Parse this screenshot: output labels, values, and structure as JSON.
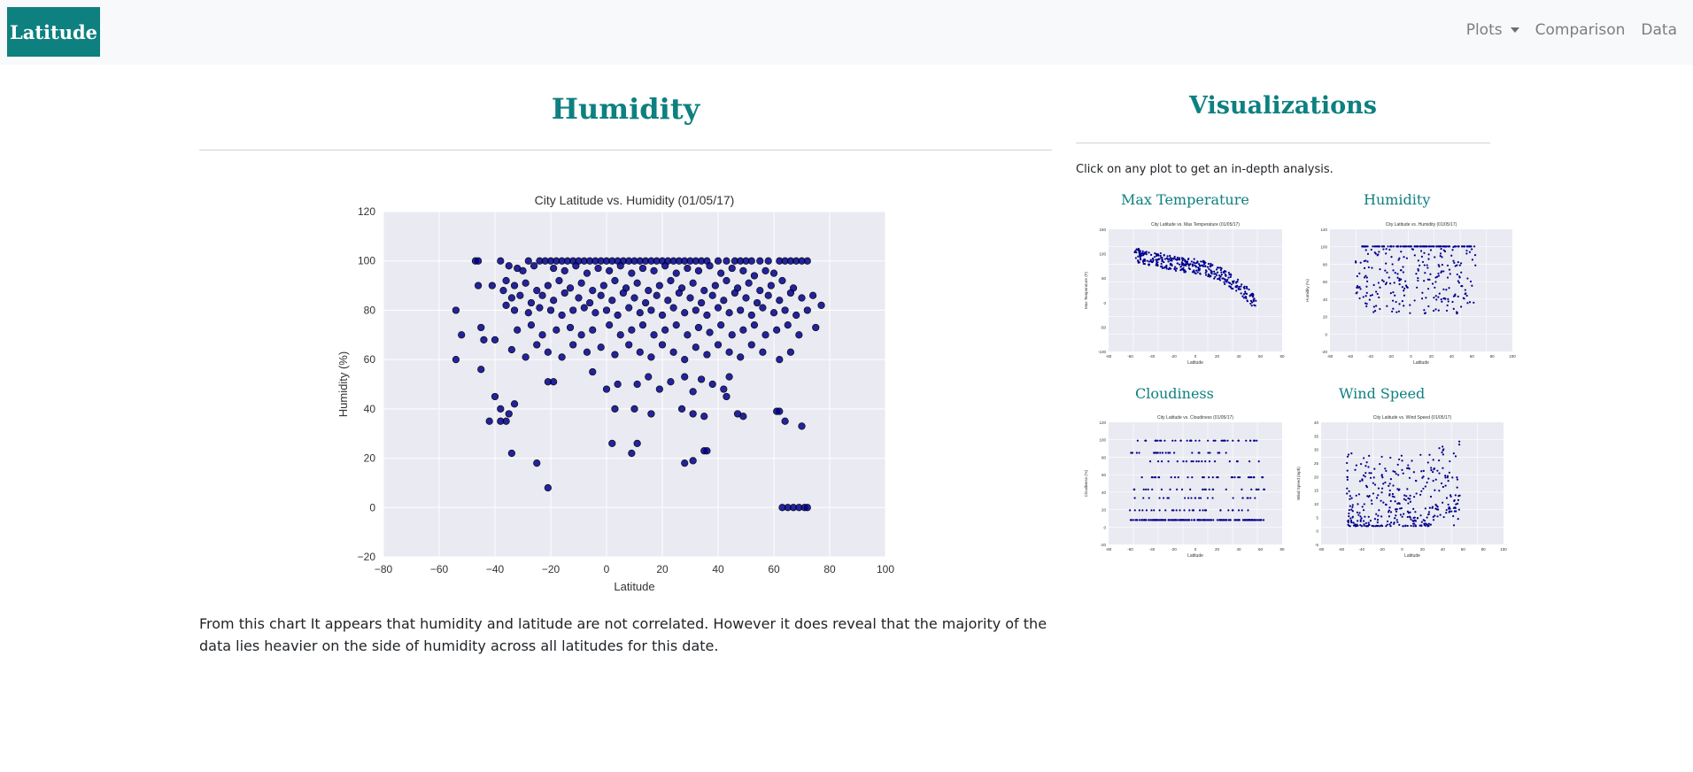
{
  "navbar": {
    "brand": "Latitude",
    "links": [
      {
        "label": "Plots",
        "has_caret": true
      },
      {
        "label": "Comparison"
      },
      {
        "label": "Data"
      }
    ]
  },
  "main": {
    "title": "Humidity",
    "description": "From this chart It appears that humidity and latitude are not correlated. However it does reveal that the majority of the data lies heavier on the side of humidity across all latitudes for this date."
  },
  "sidebar": {
    "title": "Visualizations",
    "intro": "Click on any plot to get an in-depth analysis.",
    "thumbnails": [
      {
        "label": "Max Temperature",
        "plot_title": "City Latitude vs. Max Temperature (01/05/17)",
        "xlabel": "Latitude",
        "ylabel": "Max Temperature (F)",
        "yticks": [
          "150",
          "100",
          "50",
          "0",
          "-50",
          "-100"
        ],
        "xticks": [
          "-80",
          "-60",
          "-40",
          "-20",
          "0",
          "20",
          "40",
          "60",
          "80"
        ]
      },
      {
        "label": "Humidity",
        "plot_title": "City Latitude vs. Humidity (01/05/17)",
        "xlabel": "Latitude",
        "ylabel": "Humidity (%)",
        "yticks": [
          "120",
          "100",
          "80",
          "60",
          "40",
          "20",
          "0",
          "-20"
        ],
        "xticks": [
          "-80",
          "-60",
          "-40",
          "-20",
          "0",
          "20",
          "40",
          "60",
          "80",
          "100"
        ]
      },
      {
        "label": "Cloudiness",
        "plot_title": "City Latitude vs. Cloudiness (01/05/17)",
        "xlabel": "Latitude",
        "ylabel": "Cloudiness (%)",
        "yticks": [
          "120",
          "100",
          "80",
          "60",
          "40",
          "20",
          "0",
          "-20"
        ],
        "xticks": [
          "-80",
          "-60",
          "-40",
          "-20",
          "0",
          "20",
          "40",
          "60",
          "80"
        ]
      },
      {
        "label": "Wind Speed",
        "plot_title": "City Latitude vs. Wind Speed (01/05/17)",
        "xlabel": "Latitude",
        "ylabel": "Wind Speed (mph)",
        "yticks": [
          "40",
          "35",
          "30",
          "25",
          "20",
          "15",
          "10",
          "5",
          "0",
          "-5"
        ],
        "xticks": [
          "-80",
          "-60",
          "-40",
          "-20",
          "0",
          "20",
          "40",
          "60",
          "80",
          "100"
        ]
      }
    ]
  },
  "colors": {
    "accent": "#0e8080",
    "navbar_bg": "#f8f9fa",
    "plot_bg": "#eaeaf2",
    "marker": "#00008b"
  },
  "chart_data": {
    "type": "scatter",
    "title": "City Latitude vs. Humidity (01/05/17)",
    "xlabel": "Latitude",
    "ylabel": "Humidity (%)",
    "xlim": [
      -80,
      100
    ],
    "ylim": [
      -20,
      120
    ],
    "xticks": [
      -80,
      -60,
      -40,
      -20,
      0,
      20,
      40,
      60,
      80,
      100
    ],
    "yticks": [
      -20,
      0,
      20,
      40,
      60,
      80,
      100,
      120
    ],
    "grid": true,
    "series": [
      {
        "points": [
          [
            -47,
            100
          ],
          [
            -46,
            100
          ],
          [
            -38,
            100
          ],
          [
            -35,
            98
          ],
          [
            -32,
            97
          ],
          [
            -28,
            100
          ],
          [
            -24,
            100
          ],
          [
            -22,
            100
          ],
          [
            -20,
            100
          ],
          [
            -18,
            100
          ],
          [
            -16,
            100
          ],
          [
            -14,
            100
          ],
          [
            -12,
            100
          ],
          [
            -10,
            100
          ],
          [
            -8,
            100
          ],
          [
            -6,
            100
          ],
          [
            -4,
            100
          ],
          [
            -2,
            100
          ],
          [
            0,
            100
          ],
          [
            2,
            100
          ],
          [
            4,
            100
          ],
          [
            6,
            100
          ],
          [
            8,
            100
          ],
          [
            10,
            100
          ],
          [
            12,
            100
          ],
          [
            14,
            100
          ],
          [
            16,
            100
          ],
          [
            18,
            100
          ],
          [
            20,
            100
          ],
          [
            22,
            100
          ],
          [
            24,
            100
          ],
          [
            26,
            100
          ],
          [
            28,
            100
          ],
          [
            30,
            100
          ],
          [
            32,
            100
          ],
          [
            34,
            100
          ],
          [
            36,
            100
          ],
          [
            40,
            100
          ],
          [
            43,
            100
          ],
          [
            46,
            100
          ],
          [
            48,
            100
          ],
          [
            50,
            100
          ],
          [
            52,
            100
          ],
          [
            55,
            100
          ],
          [
            58,
            100
          ],
          [
            62,
            100
          ],
          [
            64,
            100
          ],
          [
            66,
            100
          ],
          [
            68,
            100
          ],
          [
            70,
            100
          ],
          [
            72,
            100
          ],
          [
            -30,
            96
          ],
          [
            -26,
            98
          ],
          [
            -19,
            97
          ],
          [
            -15,
            96
          ],
          [
            -11,
            98
          ],
          [
            -7,
            95
          ],
          [
            -3,
            97
          ],
          [
            1,
            96
          ],
          [
            5,
            98
          ],
          [
            9,
            95
          ],
          [
            13,
            97
          ],
          [
            17,
            96
          ],
          [
            21,
            98
          ],
          [
            25,
            95
          ],
          [
            29,
            97
          ],
          [
            33,
            96
          ],
          [
            37,
            98
          ],
          [
            41,
            95
          ],
          [
            45,
            97
          ],
          [
            49,
            96
          ],
          [
            53,
            94
          ],
          [
            57,
            96
          ],
          [
            60,
            95
          ],
          [
            -46,
            90
          ],
          [
            -41,
            90
          ],
          [
            -36,
            92
          ],
          [
            -33,
            90
          ],
          [
            -29,
            91
          ],
          [
            -25,
            88
          ],
          [
            -21,
            90
          ],
          [
            -17,
            92
          ],
          [
            -13,
            89
          ],
          [
            -9,
            91
          ],
          [
            -5,
            88
          ],
          [
            -1,
            90
          ],
          [
            3,
            92
          ],
          [
            7,
            89
          ],
          [
            11,
            91
          ],
          [
            15,
            88
          ],
          [
            19,
            90
          ],
          [
            23,
            92
          ],
          [
            27,
            89
          ],
          [
            31,
            91
          ],
          [
            35,
            88
          ],
          [
            39,
            90
          ],
          [
            43,
            92
          ],
          [
            47,
            89
          ],
          [
            51,
            91
          ],
          [
            55,
            88
          ],
          [
            59,
            90
          ],
          [
            63,
            92
          ],
          [
            67,
            89
          ],
          [
            -37,
            88
          ],
          [
            -34,
            85
          ],
          [
            -31,
            86
          ],
          [
            -27,
            83
          ],
          [
            -23,
            86
          ],
          [
            -19,
            84
          ],
          [
            -15,
            87
          ],
          [
            -10,
            85
          ],
          [
            -6,
            83
          ],
          [
            -2,
            86
          ],
          [
            2,
            84
          ],
          [
            6,
            87
          ],
          [
            10,
            85
          ],
          [
            14,
            83
          ],
          [
            18,
            86
          ],
          [
            22,
            84
          ],
          [
            26,
            87
          ],
          [
            30,
            85
          ],
          [
            34,
            83
          ],
          [
            38,
            86
          ],
          [
            42,
            84
          ],
          [
            46,
            87
          ],
          [
            50,
            85
          ],
          [
            54,
            83
          ],
          [
            58,
            86
          ],
          [
            62,
            84
          ],
          [
            66,
            87
          ],
          [
            70,
            85
          ],
          [
            74,
            86
          ],
          [
            77,
            82
          ],
          [
            -54,
            80
          ],
          [
            -36,
            82
          ],
          [
            -33,
            80
          ],
          [
            -28,
            79
          ],
          [
            -24,
            81
          ],
          [
            -20,
            80
          ],
          [
            -16,
            78
          ],
          [
            -12,
            80
          ],
          [
            -8,
            81
          ],
          [
            -4,
            79
          ],
          [
            0,
            80
          ],
          [
            4,
            78
          ],
          [
            8,
            81
          ],
          [
            12,
            79
          ],
          [
            16,
            80
          ],
          [
            20,
            78
          ],
          [
            24,
            81
          ],
          [
            28,
            79
          ],
          [
            32,
            80
          ],
          [
            36,
            78
          ],
          [
            40,
            81
          ],
          [
            44,
            79
          ],
          [
            48,
            80
          ],
          [
            52,
            78
          ],
          [
            56,
            81
          ],
          [
            60,
            79
          ],
          [
            64,
            80
          ],
          [
            68,
            78
          ],
          [
            72,
            80
          ],
          [
            -52,
            70
          ],
          [
            -45,
            73
          ],
          [
            -40,
            68
          ],
          [
            -32,
            72
          ],
          [
            -27,
            74
          ],
          [
            -23,
            70
          ],
          [
            -18,
            72
          ],
          [
            -13,
            73
          ],
          [
            -9,
            70
          ],
          [
            -5,
            72
          ],
          [
            1,
            74
          ],
          [
            5,
            70
          ],
          [
            9,
            72
          ],
          [
            13,
            74
          ],
          [
            17,
            70
          ],
          [
            21,
            72
          ],
          [
            25,
            74
          ],
          [
            29,
            70
          ],
          [
            33,
            73
          ],
          [
            37,
            71
          ],
          [
            41,
            74
          ],
          [
            45,
            70
          ],
          [
            49,
            72
          ],
          [
            53,
            74
          ],
          [
            57,
            70
          ],
          [
            61,
            72
          ],
          [
            65,
            74
          ],
          [
            69,
            70
          ],
          [
            75,
            73
          ],
          [
            -54,
            60
          ],
          [
            -44,
            68
          ],
          [
            -34,
            64
          ],
          [
            -29,
            61
          ],
          [
            -25,
            66
          ],
          [
            -21,
            63
          ],
          [
            -16,
            61
          ],
          [
            -12,
            66
          ],
          [
            -7,
            63
          ],
          [
            -2,
            65
          ],
          [
            3,
            62
          ],
          [
            8,
            66
          ],
          [
            12,
            63
          ],
          [
            16,
            61
          ],
          [
            20,
            66
          ],
          [
            24,
            63
          ],
          [
            28,
            60
          ],
          [
            32,
            65
          ],
          [
            36,
            62
          ],
          [
            40,
            66
          ],
          [
            44,
            63
          ],
          [
            48,
            61
          ],
          [
            52,
            66
          ],
          [
            56,
            63
          ],
          [
            62,
            60
          ],
          [
            66,
            63
          ],
          [
            -45,
            56
          ],
          [
            -21,
            51
          ],
          [
            -19,
            51
          ],
          [
            -5,
            55
          ],
          [
            0,
            48
          ],
          [
            4,
            50
          ],
          [
            11,
            50
          ],
          [
            15,
            53
          ],
          [
            19,
            48
          ],
          [
            23,
            51
          ],
          [
            28,
            53
          ],
          [
            31,
            47
          ],
          [
            34,
            52
          ],
          [
            38,
            50
          ],
          [
            42,
            48
          ],
          [
            44,
            53
          ],
          [
            -40,
            45
          ],
          [
            -38,
            40
          ],
          [
            -35,
            38
          ],
          [
            -33,
            42
          ],
          [
            -36,
            35
          ],
          [
            -42,
            35
          ],
          [
            -38,
            35
          ],
          [
            3,
            40
          ],
          [
            10,
            40
          ],
          [
            16,
            38
          ],
          [
            27,
            40
          ],
          [
            31,
            38
          ],
          [
            35,
            37
          ],
          [
            43,
            45
          ],
          [
            47,
            38
          ],
          [
            49,
            37
          ],
          [
            61,
            39
          ],
          [
            62,
            39
          ],
          [
            -34,
            22
          ],
          [
            -25,
            18
          ],
          [
            -21,
            8
          ],
          [
            2,
            26
          ],
          [
            9,
            22
          ],
          [
            11,
            26
          ],
          [
            28,
            18
          ],
          [
            31,
            19
          ],
          [
            35,
            23
          ],
          [
            36,
            23
          ],
          [
            64,
            35
          ],
          [
            70,
            33
          ],
          [
            63,
            0
          ],
          [
            65,
            0
          ],
          [
            67,
            0
          ],
          [
            69,
            0
          ],
          [
            71,
            0
          ],
          [
            72,
            0
          ]
        ]
      }
    ]
  }
}
